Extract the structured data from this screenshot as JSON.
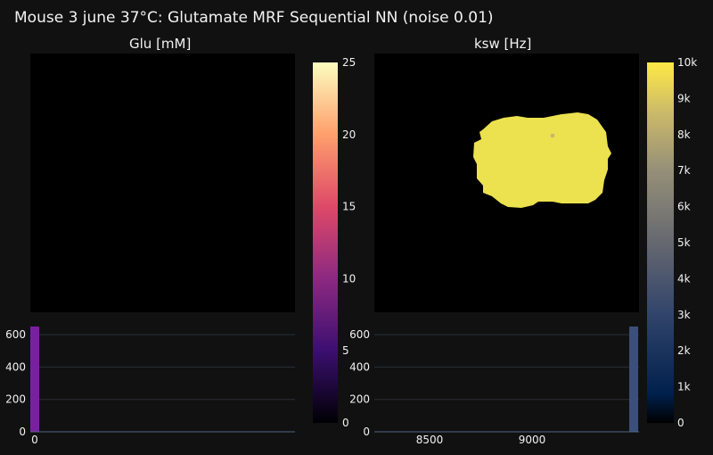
{
  "title": "Mouse 3 june 37°C: Glutamate MRF Sequential NN (noise 0.01)",
  "panels": [
    {
      "subtitle": "Glu [mM]",
      "colorbar": {
        "ticks": [
          "0",
          "5",
          "10",
          "15",
          "20",
          "25"
        ],
        "scale": "magma",
        "colors": [
          "#000004",
          "#3b0f70",
          "#8c2981",
          "#de4968",
          "#fe9f6d",
          "#fcfdbf"
        ]
      },
      "histogram": {
        "yticks": [
          "0",
          "200",
          "400",
          "600"
        ],
        "xticks": [
          "0"
        ],
        "bar_color": "#7b1fa2"
      }
    },
    {
      "subtitle": "ksw [Hz]",
      "colorbar": {
        "ticks": [
          "0",
          "1k",
          "2k",
          "3k",
          "4k",
          "5k",
          "6k",
          "7k",
          "8k",
          "9k",
          "10k"
        ],
        "scale": "cividis",
        "colors": [
          "#00204c",
          "#31446b",
          "#666870",
          "#958f78",
          "#cbba69",
          "#ffe945"
        ]
      },
      "histogram": {
        "yticks": [
          "0",
          "200",
          "400",
          "600"
        ],
        "xticks": [
          "8500",
          "9000"
        ],
        "bar_color": "#3b4f7a"
      }
    }
  ],
  "chart_data": [
    {
      "type": "heatmap",
      "title": "Glu [mM]",
      "zlim": [
        0,
        25
      ],
      "description_values": "all pixels ~0 (black map)"
    },
    {
      "type": "bar",
      "title": "Glu [mM] histogram",
      "x": [
        0
      ],
      "values": [
        630
      ],
      "ylim": [
        0,
        650
      ]
    },
    {
      "type": "heatmap",
      "title": "ksw [Hz]",
      "zlim": [
        0,
        10000
      ],
      "description_values": "brain mask region ~10000, background 0"
    },
    {
      "type": "bar",
      "title": "ksw [Hz] histogram",
      "x": [
        9500
      ],
      "values": [
        630
      ],
      "xlim": [
        8100,
        9500
      ],
      "ylim": [
        0,
        650
      ]
    }
  ]
}
